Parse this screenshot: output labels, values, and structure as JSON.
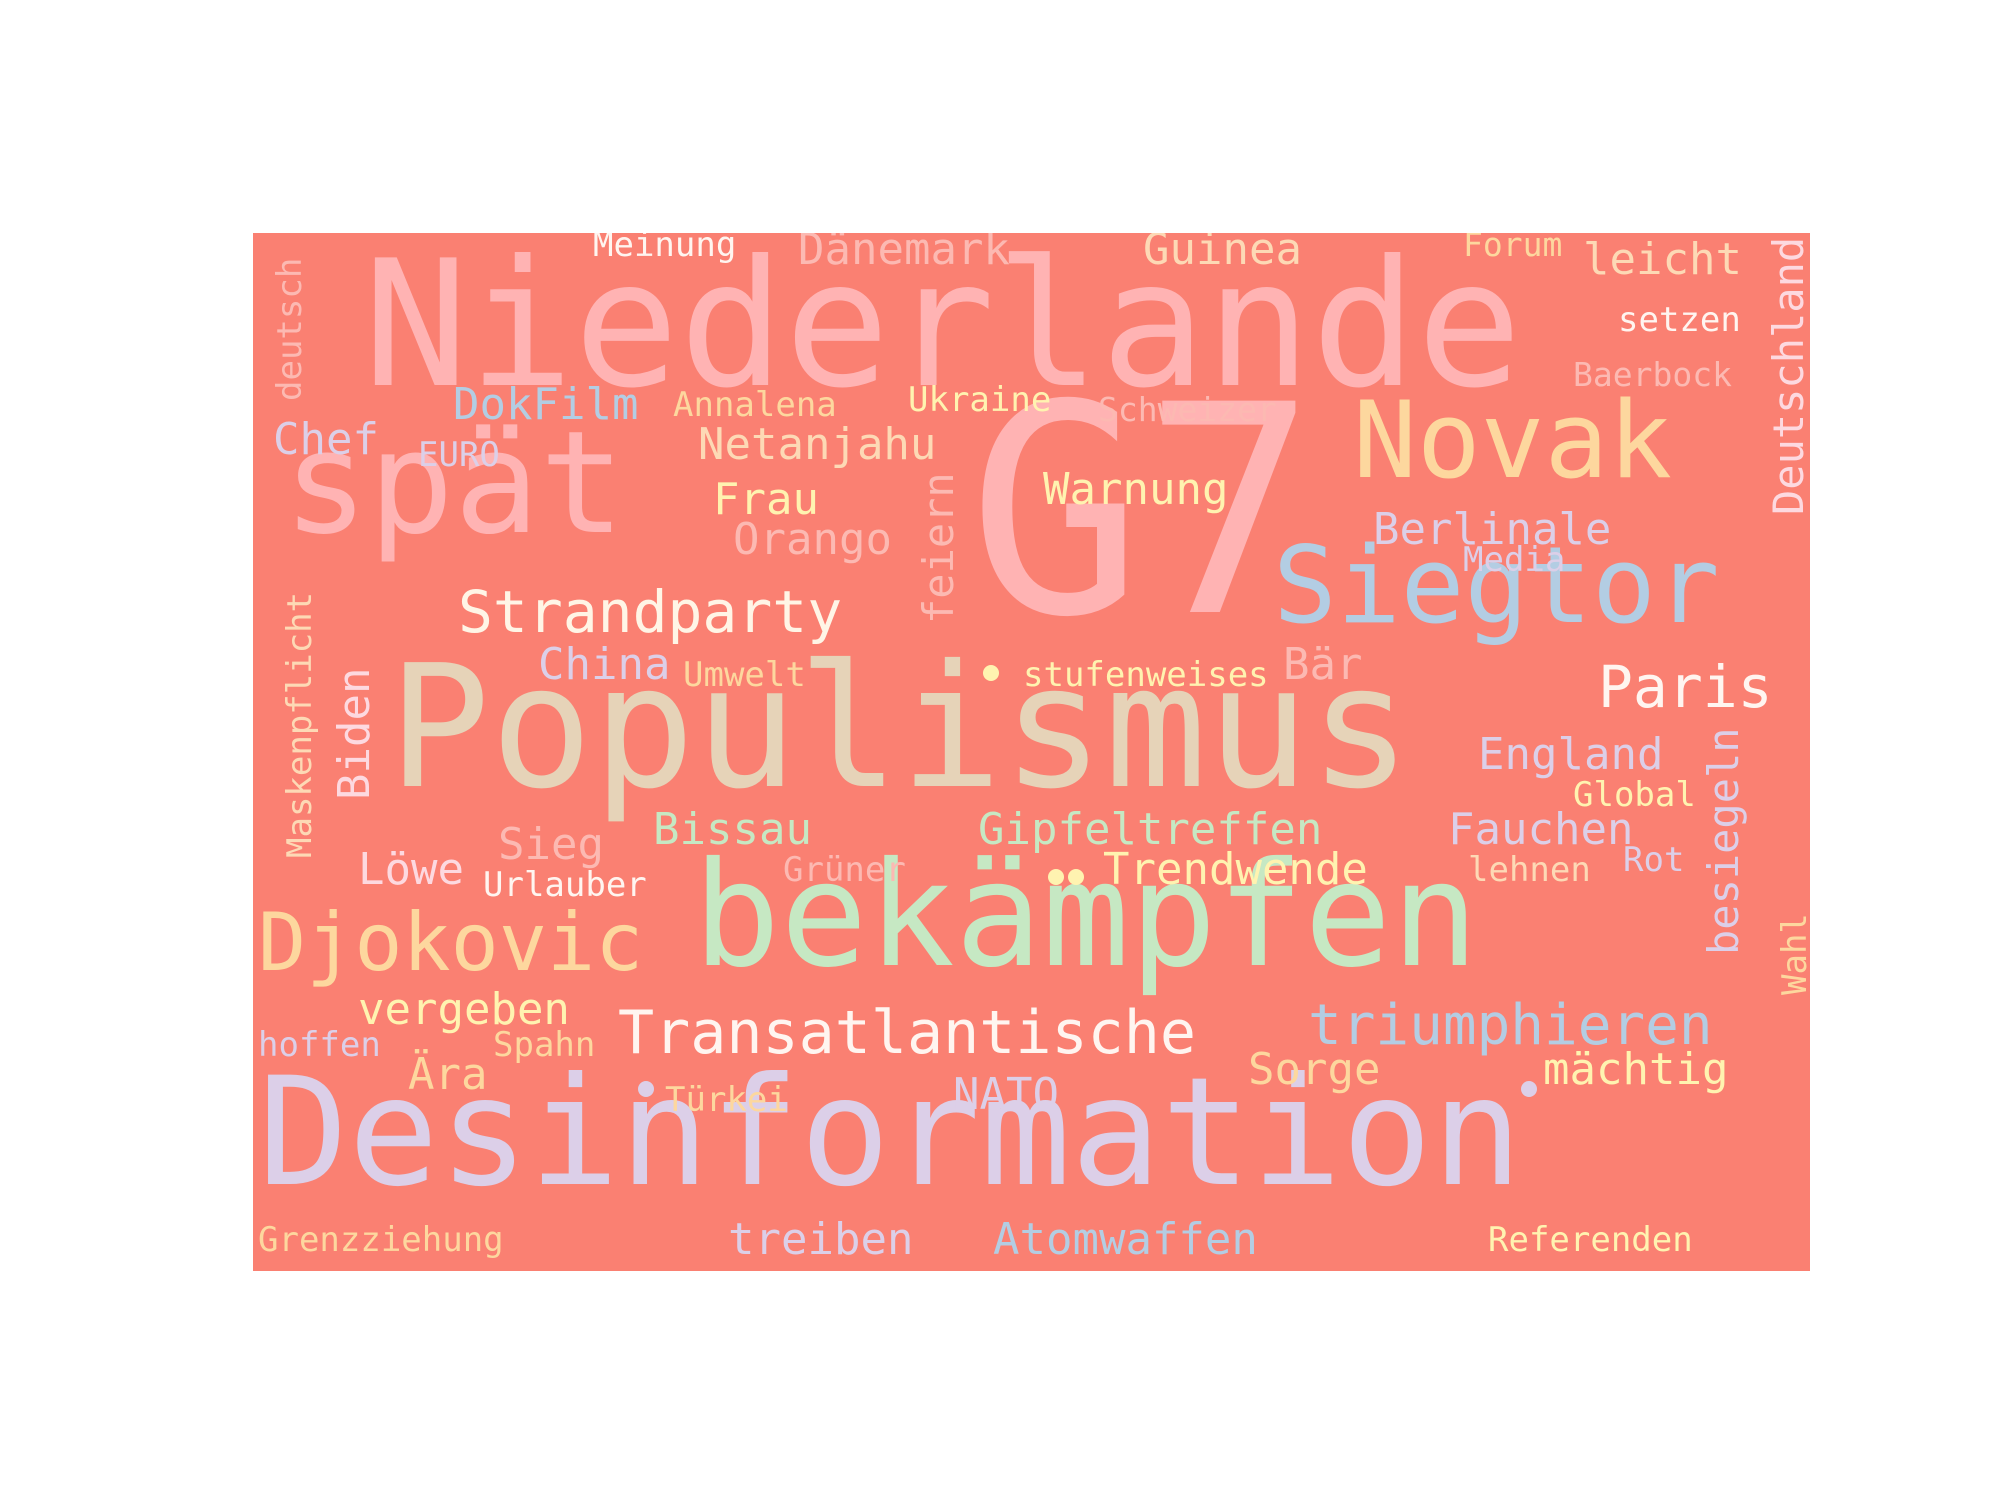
{
  "background": "#fa8072",
  "words": [
    {
      "text": "Niederlande",
      "color": "#ffb3b3"
    },
    {
      "text": "G7",
      "color": "#ffb3b3"
    },
    {
      "text": "Populismus",
      "color": "#e6d3b8"
    },
    {
      "text": "bekämpfen",
      "color": "#c6e8c3"
    },
    {
      "text": "Desinformation",
      "color": "#dccfe8"
    },
    {
      "text": "spät",
      "color": "#ffb3b3"
    },
    {
      "text": "Novak",
      "color": "#fdd79e"
    },
    {
      "text": "Siegtor",
      "color": "#b3cde3"
    },
    {
      "text": "Djokovic",
      "color": "#fdd79e"
    },
    {
      "text": "Strandparty",
      "color": "#fff5e6"
    },
    {
      "text": "Transatlantische",
      "color": "#fff5f0"
    },
    {
      "text": "triumphieren",
      "color": "#b3cde3"
    },
    {
      "text": "Paris",
      "color": "#fff5f0"
    },
    {
      "text": "Meinung",
      "color": "#fff5f0"
    },
    {
      "text": "Dänemark",
      "color": "#fcb9b2"
    },
    {
      "text": "Guinea",
      "color": "#fdd9b5"
    },
    {
      "text": "Forum",
      "color": "#fdd79e"
    },
    {
      "text": "leicht",
      "color": "#fdd9b5"
    },
    {
      "text": "setzen",
      "color": "#fff5f0"
    },
    {
      "text": "Baerbock",
      "color": "#fcb9b2"
    },
    {
      "text": "Deutschland",
      "color": "#fdd9e0"
    },
    {
      "text": "deutsch",
      "color": "#fcb9b2"
    },
    {
      "text": "DokFilm",
      "color": "#b3cde3"
    },
    {
      "text": "Annalena",
      "color": "#fdd79e"
    },
    {
      "text": "Ukraine",
      "color": "#fff3b0"
    },
    {
      "text": "Schweizer",
      "color": "#fcb9b2"
    },
    {
      "text": "Chef",
      "color": "#dccfe8"
    },
    {
      "text": "EURO",
      "color": "#dccfe8"
    },
    {
      "text": "Netanjahu",
      "color": "#fdd9b5"
    },
    {
      "text": "Frau",
      "color": "#fff3b0"
    },
    {
      "text": "Warnung",
      "color": "#fff3b0"
    },
    {
      "text": "Orango",
      "color": "#fcb9b2"
    },
    {
      "text": "Berlinale",
      "color": "#dccfe8"
    },
    {
      "text": "Media",
      "color": "#dccfe8"
    },
    {
      "text": "feiern",
      "color": "#fcb9b2"
    },
    {
      "text": "China",
      "color": "#dccfe8"
    },
    {
      "text": "Umwelt",
      "color": "#fdd79e"
    },
    {
      "text": "stufenweises",
      "color": "#fff3b0"
    },
    {
      "text": "Bär",
      "color": "#fcb9b2"
    },
    {
      "text": "Maskenpflicht",
      "color": "#fdd9b5"
    },
    {
      "text": "Biden",
      "color": "#fdd9e0"
    },
    {
      "text": "England",
      "color": "#dccfe8"
    },
    {
      "text": "Global",
      "color": "#fff3b0"
    },
    {
      "text": "besiegeln",
      "color": "#dccfe8"
    },
    {
      "text": "Bissau",
      "color": "#c6e8c3"
    },
    {
      "text": "Gipfeltreffen",
      "color": "#c6e8c3"
    },
    {
      "text": "Fauchen",
      "color": "#dccfe8"
    },
    {
      "text": "Sieg",
      "color": "#fcb9b2"
    },
    {
      "text": "Löwe",
      "color": "#fdd9e0"
    },
    {
      "text": "Urlauber",
      "color": "#fff5f0"
    },
    {
      "text": "Grüner",
      "color": "#fcb9b2"
    },
    {
      "text": "Trendwende",
      "color": "#fff3b0"
    },
    {
      "text": "lehnen",
      "color": "#fdd9b5"
    },
    {
      "text": "Rot",
      "color": "#dccfe8"
    },
    {
      "text": "Wahl",
      "color": "#fdd79e"
    },
    {
      "text": "vergeben",
      "color": "#fff3b0"
    },
    {
      "text": "hoffen",
      "color": "#dccfe8"
    },
    {
      "text": "Spahn",
      "color": "#fdd79e"
    },
    {
      "text": "Ära",
      "color": "#fdd79e"
    },
    {
      "text": "Türkei",
      "color": "#fdd79e"
    },
    {
      "text": "NATO",
      "color": "#dccfe8"
    },
    {
      "text": "Sorge",
      "color": "#fdd79e"
    },
    {
      "text": "mächtig",
      "color": "#fff3b0"
    },
    {
      "text": "Grenzziehung",
      "color": "#fdd79e"
    },
    {
      "text": "treiben",
      "color": "#dccfe8"
    },
    {
      "text": "Atomwaffen",
      "color": "#b3cde3"
    },
    {
      "text": "Referenden",
      "color": "#fff3b0"
    }
  ],
  "dots": [
    {
      "color": "#fff3b0"
    },
    {
      "color": "#fff3b0"
    },
    {
      "color": "#fff3b0"
    },
    {
      "color": "#dccfe8"
    },
    {
      "color": "#dccfe8"
    }
  ]
}
